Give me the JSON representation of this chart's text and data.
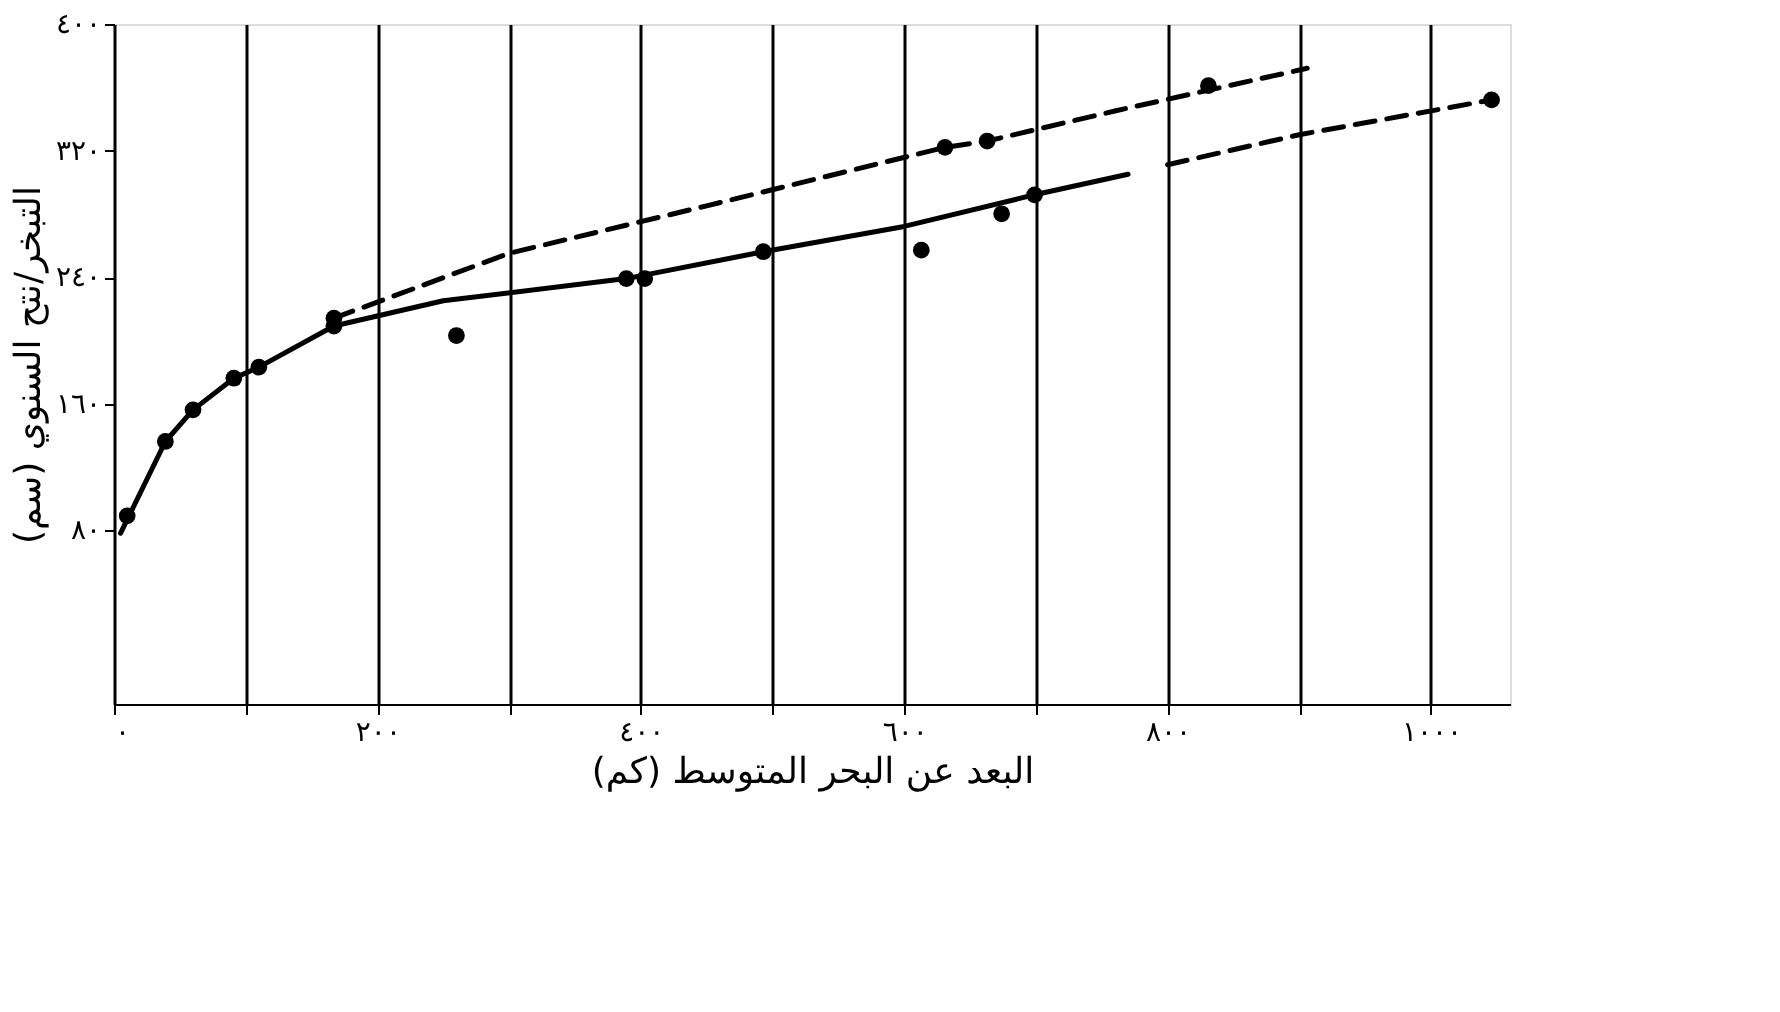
{
  "chart_data": {
    "type": "line",
    "xlabel": "البعد عن البحر المتوسط (كم)",
    "ylabel": "التبخر/نتح السنوي (سم)",
    "xlim": [
      0,
      1060
    ],
    "ylim": [
      -30,
      400
    ],
    "xticks": [
      {
        "value": 0,
        "label": "٠"
      },
      {
        "value": 100,
        "label": null
      },
      {
        "value": 200,
        "label": "٢٠٠"
      },
      {
        "value": 300,
        "label": null
      },
      {
        "value": 400,
        "label": "٤٠٠"
      },
      {
        "value": 500,
        "label": null
      },
      {
        "value": 600,
        "label": "٦٠٠"
      },
      {
        "value": 700,
        "label": null
      },
      {
        "value": 800,
        "label": "٨٠٠"
      },
      {
        "value": 900,
        "label": null
      },
      {
        "value": 1000,
        "label": "١٠٠٠"
      }
    ],
    "yticks": [
      {
        "value": 80,
        "label": "٨٠"
      },
      {
        "value": 160,
        "label": "١٦٠"
      },
      {
        "value": 240,
        "label": "٢٤٠"
      },
      {
        "value": 320,
        "label": "٣٢٠"
      },
      {
        "value": 400,
        "label": "٤٠٠"
      }
    ],
    "grid": "x",
    "series": [
      {
        "color": "#000000",
        "line_style": "solid",
        "marker": "none",
        "x": [
          5,
          39,
          60,
          91,
          110,
          167,
          250,
          389,
          493,
          600,
          699,
          770
        ],
        "values": [
          78,
          136,
          156,
          176,
          183,
          209,
          225,
          239,
          256,
          272,
          292,
          305
        ]
      },
      {
        "color": "#000000",
        "line_style": "dashed",
        "marker": "none",
        "x": [
          800,
          900,
          1046
        ],
        "values": [
          311,
          330,
          352
        ]
      },
      {
        "color": "#000000",
        "line_style": "dashed",
        "marker": "none",
        "x": [
          167,
          300,
          450,
          631,
          663,
          760,
          906
        ],
        "values": [
          214,
          255,
          285,
          322,
          326,
          345,
          372
        ]
      },
      {
        "type": "scatter",
        "color": "#000000",
        "marker": "circle",
        "x": [
          10,
          39,
          60,
          91,
          110,
          167,
          260,
          389,
          403,
          493,
          613,
          674,
          699,
          1046,
          167,
          631,
          663,
          831
        ],
        "values": [
          89,
          136,
          156,
          176,
          183,
          209,
          203,
          239,
          239,
          256,
          257,
          280,
          292,
          352,
          214,
          322,
          326,
          361
        ]
      }
    ]
  }
}
